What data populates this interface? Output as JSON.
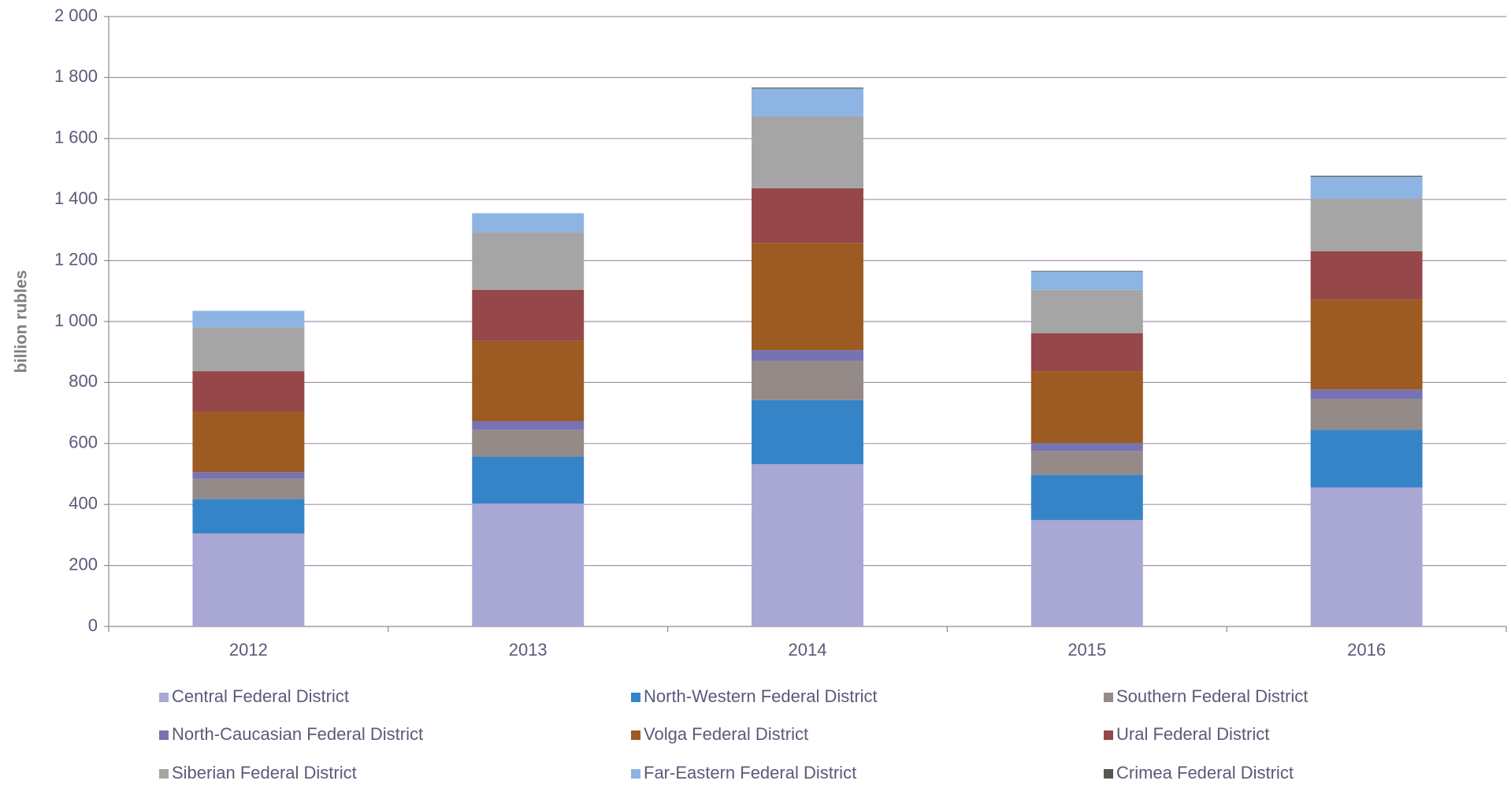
{
  "chart_data": {
    "type": "stacked_bar",
    "y_label": "billion rubles",
    "categories": [
      "2012",
      "2013",
      "2014",
      "2015",
      "2016"
    ],
    "series": [
      {
        "name": "Central Federal District",
        "color": "#a9a7d4",
        "values": [
          305,
          403,
          532,
          349,
          456
        ]
      },
      {
        "name": "North-Western Federal District",
        "color": "#3584c8",
        "values": [
          113,
          154,
          210,
          148,
          189
        ]
      },
      {
        "name": "Southern Federal District",
        "color": "#948a88",
        "values": [
          66,
          88,
          129,
          79,
          100
        ]
      },
      {
        "name": "North-Caucasian Federal District",
        "color": "#7773b3",
        "values": [
          22,
          28,
          35,
          25,
          32
        ]
      },
      {
        "name": "Volga Federal District",
        "color": "#9c5b22",
        "values": [
          198,
          264,
          352,
          236,
          295
        ]
      },
      {
        "name": "Ural Federal District",
        "color": "#96474a",
        "values": [
          133,
          167,
          179,
          125,
          158
        ]
      },
      {
        "name": "Siberian Federal District",
        "color": "#a5a5a5",
        "values": [
          144,
          189,
          236,
          142,
          173
        ]
      },
      {
        "name": "Far-Eastern Federal District",
        "color": "#8db4e2",
        "values": [
          54,
          62,
          91,
          60,
          72
        ]
      },
      {
        "name": "Crimea Federal District",
        "color": "#555555",
        "values": [
          0,
          0,
          3,
          2,
          3
        ]
      }
    ],
    "ylim": [
      0,
      2000
    ],
    "yticks": [
      0,
      200,
      400,
      600,
      800,
      {
        "value": 1000,
        "label": "1 000"
      },
      {
        "value": 1200,
        "label": "1 200"
      },
      {
        "value": 1400,
        "label": "1 400"
      },
      {
        "value": 1600,
        "label": "1 600"
      },
      {
        "value": 1800,
        "label": "1 800"
      },
      {
        "value": 2000,
        "label": "2 000"
      }
    ],
    "grid": true,
    "legend": "bottom"
  }
}
